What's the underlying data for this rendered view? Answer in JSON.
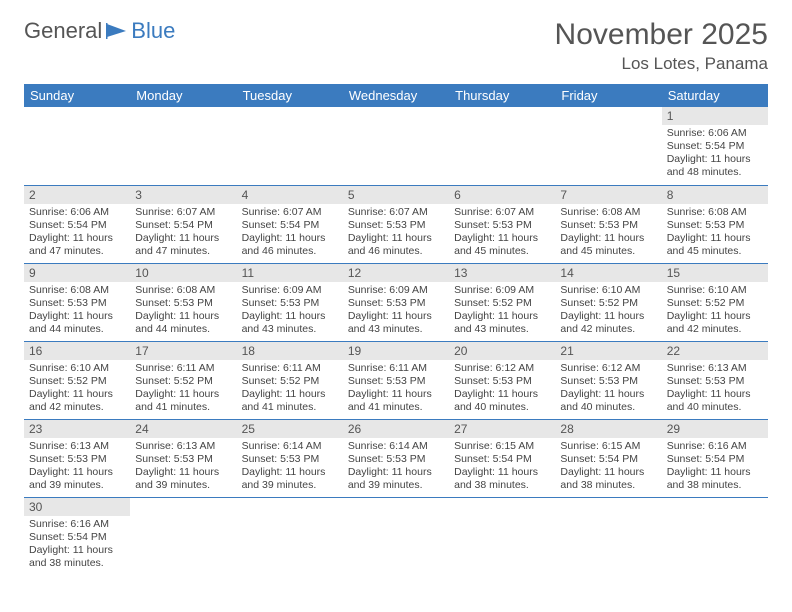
{
  "logo": {
    "text1": "General",
    "text2": "Blue"
  },
  "title": "November 2025",
  "location": "Los Lotes, Panama",
  "colors": {
    "header_bg": "#3b7bbf",
    "header_text": "#ffffff",
    "daynum_bg": "#e7e7e7",
    "row_border": "#3b7bbf",
    "text": "#444444",
    "title_text": "#555555"
  },
  "weekdays": [
    "Sunday",
    "Monday",
    "Tuesday",
    "Wednesday",
    "Thursday",
    "Friday",
    "Saturday"
  ],
  "start_day_index": 6,
  "days": [
    {
      "n": 1,
      "sunrise": "6:06 AM",
      "sunset": "5:54 PM",
      "daylight": "11 hours and 48 minutes."
    },
    {
      "n": 2,
      "sunrise": "6:06 AM",
      "sunset": "5:54 PM",
      "daylight": "11 hours and 47 minutes."
    },
    {
      "n": 3,
      "sunrise": "6:07 AM",
      "sunset": "5:54 PM",
      "daylight": "11 hours and 47 minutes."
    },
    {
      "n": 4,
      "sunrise": "6:07 AM",
      "sunset": "5:54 PM",
      "daylight": "11 hours and 46 minutes."
    },
    {
      "n": 5,
      "sunrise": "6:07 AM",
      "sunset": "5:53 PM",
      "daylight": "11 hours and 46 minutes."
    },
    {
      "n": 6,
      "sunrise": "6:07 AM",
      "sunset": "5:53 PM",
      "daylight": "11 hours and 45 minutes."
    },
    {
      "n": 7,
      "sunrise": "6:08 AM",
      "sunset": "5:53 PM",
      "daylight": "11 hours and 45 minutes."
    },
    {
      "n": 8,
      "sunrise": "6:08 AM",
      "sunset": "5:53 PM",
      "daylight": "11 hours and 45 minutes."
    },
    {
      "n": 9,
      "sunrise": "6:08 AM",
      "sunset": "5:53 PM",
      "daylight": "11 hours and 44 minutes."
    },
    {
      "n": 10,
      "sunrise": "6:08 AM",
      "sunset": "5:53 PM",
      "daylight": "11 hours and 44 minutes."
    },
    {
      "n": 11,
      "sunrise": "6:09 AM",
      "sunset": "5:53 PM",
      "daylight": "11 hours and 43 minutes."
    },
    {
      "n": 12,
      "sunrise": "6:09 AM",
      "sunset": "5:53 PM",
      "daylight": "11 hours and 43 minutes."
    },
    {
      "n": 13,
      "sunrise": "6:09 AM",
      "sunset": "5:52 PM",
      "daylight": "11 hours and 43 minutes."
    },
    {
      "n": 14,
      "sunrise": "6:10 AM",
      "sunset": "5:52 PM",
      "daylight": "11 hours and 42 minutes."
    },
    {
      "n": 15,
      "sunrise": "6:10 AM",
      "sunset": "5:52 PM",
      "daylight": "11 hours and 42 minutes."
    },
    {
      "n": 16,
      "sunrise": "6:10 AM",
      "sunset": "5:52 PM",
      "daylight": "11 hours and 42 minutes."
    },
    {
      "n": 17,
      "sunrise": "6:11 AM",
      "sunset": "5:52 PM",
      "daylight": "11 hours and 41 minutes."
    },
    {
      "n": 18,
      "sunrise": "6:11 AM",
      "sunset": "5:52 PM",
      "daylight": "11 hours and 41 minutes."
    },
    {
      "n": 19,
      "sunrise": "6:11 AM",
      "sunset": "5:53 PM",
      "daylight": "11 hours and 41 minutes."
    },
    {
      "n": 20,
      "sunrise": "6:12 AM",
      "sunset": "5:53 PM",
      "daylight": "11 hours and 40 minutes."
    },
    {
      "n": 21,
      "sunrise": "6:12 AM",
      "sunset": "5:53 PM",
      "daylight": "11 hours and 40 minutes."
    },
    {
      "n": 22,
      "sunrise": "6:13 AM",
      "sunset": "5:53 PM",
      "daylight": "11 hours and 40 minutes."
    },
    {
      "n": 23,
      "sunrise": "6:13 AM",
      "sunset": "5:53 PM",
      "daylight": "11 hours and 39 minutes."
    },
    {
      "n": 24,
      "sunrise": "6:13 AM",
      "sunset": "5:53 PM",
      "daylight": "11 hours and 39 minutes."
    },
    {
      "n": 25,
      "sunrise": "6:14 AM",
      "sunset": "5:53 PM",
      "daylight": "11 hours and 39 minutes."
    },
    {
      "n": 26,
      "sunrise": "6:14 AM",
      "sunset": "5:53 PM",
      "daylight": "11 hours and 39 minutes."
    },
    {
      "n": 27,
      "sunrise": "6:15 AM",
      "sunset": "5:54 PM",
      "daylight": "11 hours and 38 minutes."
    },
    {
      "n": 28,
      "sunrise": "6:15 AM",
      "sunset": "5:54 PM",
      "daylight": "11 hours and 38 minutes."
    },
    {
      "n": 29,
      "sunrise": "6:16 AM",
      "sunset": "5:54 PM",
      "daylight": "11 hours and 38 minutes."
    },
    {
      "n": 30,
      "sunrise": "6:16 AM",
      "sunset": "5:54 PM",
      "daylight": "11 hours and 38 minutes."
    }
  ]
}
